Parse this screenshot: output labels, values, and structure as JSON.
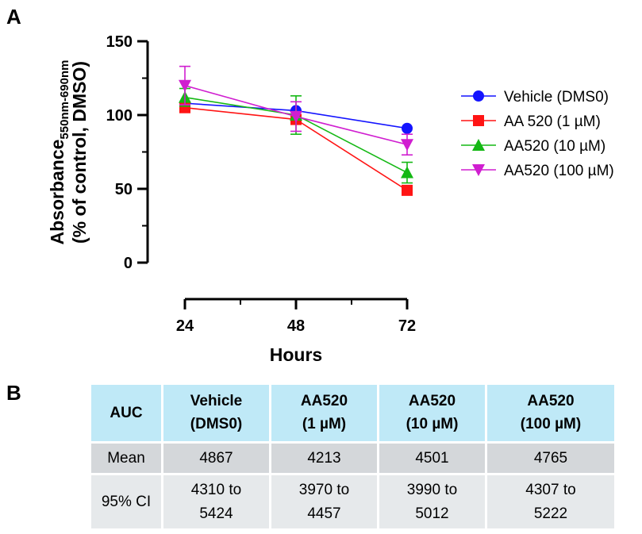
{
  "panels": {
    "a": "A",
    "b": "B"
  },
  "chart_data": {
    "type": "line",
    "title": "",
    "xlabel": "Hours",
    "ylabel_main": "Absorbance",
    "ylabel_sub": "550nm-690nm",
    "ylabel_line2": "(% of control, DMSO)",
    "x": [
      24,
      48,
      72
    ],
    "xticks": [
      "24",
      "48",
      "72"
    ],
    "ylim": [
      0,
      150
    ],
    "yticks": [
      0,
      50,
      100,
      150
    ],
    "series": [
      {
        "name": "Vehicle (DMS0)",
        "color": "#1414ff",
        "marker": "circle",
        "values": [
          108,
          103,
          91
        ],
        "errors": [
          0,
          0,
          0
        ]
      },
      {
        "name": "AA 520 (1 µM)",
        "color": "#ff1414",
        "marker": "square",
        "values": [
          105,
          97,
          49
        ],
        "errors": [
          3,
          3,
          0
        ]
      },
      {
        "name": "AA520 (10 µM)",
        "color": "#14b814",
        "marker": "triangle-up",
        "values": [
          112,
          100,
          61
        ],
        "errors": [
          6,
          13,
          7
        ]
      },
      {
        "name": "AA520 (100 µM)",
        "color": "#d01ed0",
        "marker": "triangle-down",
        "values": [
          120,
          99,
          80
        ],
        "errors": [
          13,
          10,
          7
        ]
      }
    ]
  },
  "table": {
    "headers": [
      "AUC",
      "Vehicle\n(DMS0)",
      "AA520\n(1 µM)",
      "AA520\n(10 µM)",
      "AA520\n(100 µM)"
    ],
    "rows": [
      [
        "Mean",
        "4867",
        "4213",
        "4501",
        "4765"
      ],
      [
        "95% CI",
        "4310 to\n5424",
        "3970 to\n4457",
        "3990 to\n5012",
        "4307 to\n5222"
      ]
    ]
  }
}
